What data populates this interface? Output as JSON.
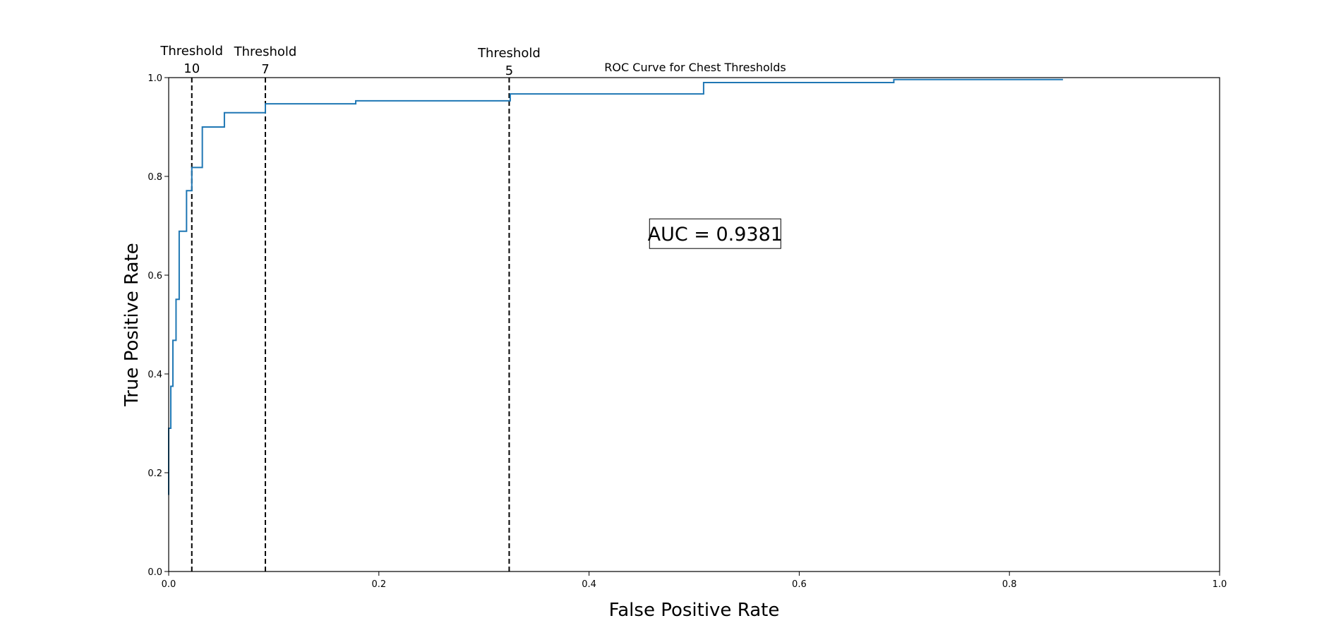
{
  "chart_data": {
    "type": "line",
    "title": "ROC Curve for Chest Thresholds",
    "xlabel": "False Positive Rate",
    "ylabel": "True Positive Rate",
    "xlim": [
      0.0,
      1.0
    ],
    "ylim": [
      0.0,
      1.0
    ],
    "x_ticks": [
      "0.0",
      "0.2",
      "0.4",
      "0.6",
      "0.8",
      "1.0"
    ],
    "y_ticks": [
      "0.0",
      "0.2",
      "0.4",
      "0.6",
      "0.8",
      "1.0"
    ],
    "grid": false,
    "legend": "none",
    "series": [
      {
        "color": "#1f77b4",
        "step": true,
        "x": [
          0.0,
          0.0,
          0.002,
          0.002,
          0.004,
          0.004,
          0.007,
          0.007,
          0.01,
          0.01,
          0.017,
          0.017,
          0.022,
          0.022,
          0.032,
          0.032,
          0.053,
          0.053,
          0.092,
          0.092,
          0.178,
          0.178,
          0.325,
          0.325,
          0.509,
          0.509,
          0.69,
          0.69,
          0.851
        ],
        "y": [
          0.155,
          0.29,
          0.29,
          0.375,
          0.375,
          0.468,
          0.468,
          0.551,
          0.551,
          0.689,
          0.689,
          0.771,
          0.771,
          0.818,
          0.818,
          0.9,
          0.9,
          0.929,
          0.929,
          0.947,
          0.947,
          0.953,
          0.953,
          0.967,
          0.967,
          0.99,
          0.99,
          0.996,
          0.996
        ]
      }
    ],
    "threshold_lines": [
      {
        "line1": "Threshold",
        "line2": "10",
        "x": 0.022
      },
      {
        "line1": "Threshold",
        "line2": "7",
        "x": 0.092
      },
      {
        "line1": "Threshold",
        "line2": "5",
        "x": 0.324
      }
    ],
    "annotation": {
      "text": "AUC = 0.9381",
      "x": 0.52,
      "y": 0.684
    },
    "colors": {
      "curve": "#1f77b4",
      "threshold": "#000000",
      "axes": "#000000"
    }
  }
}
